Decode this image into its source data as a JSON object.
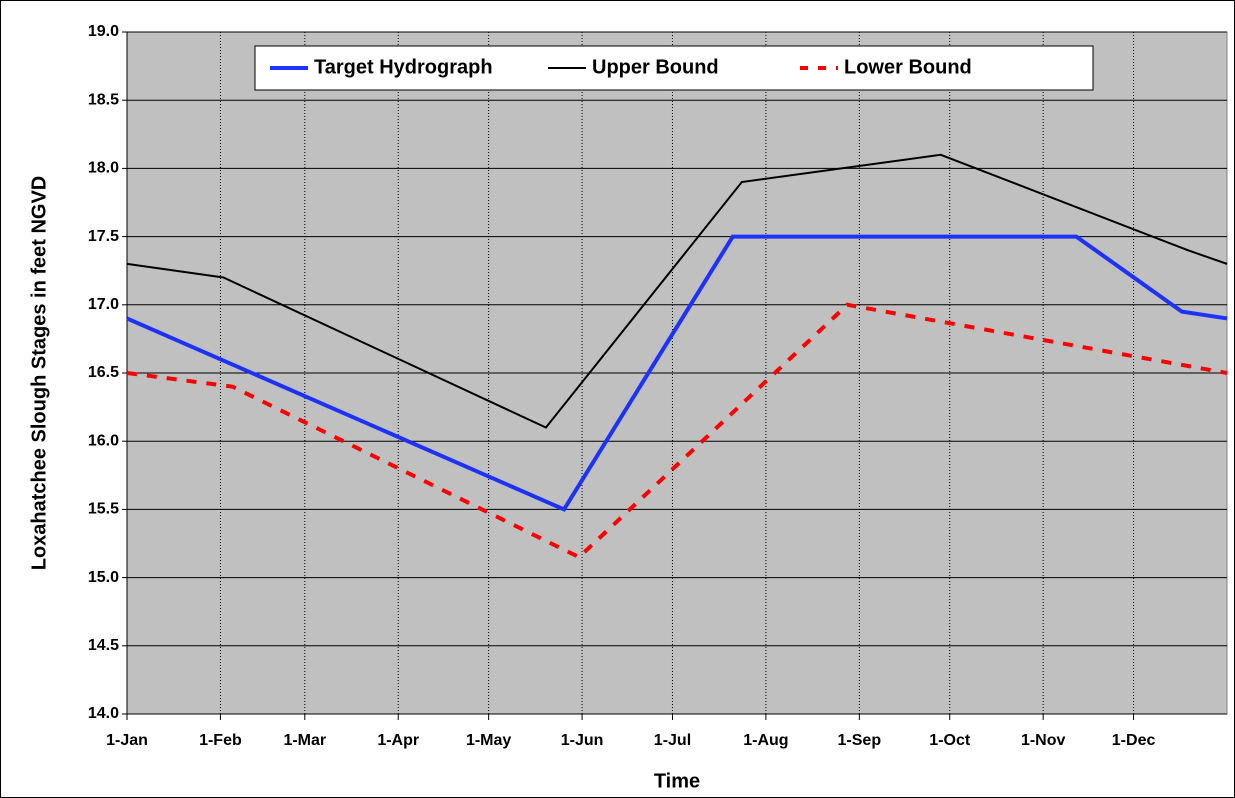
{
  "chart_data": {
    "type": "line",
    "x_label": "Time",
    "y_label": "Loxahatchee Slough Stages in feet NGVD",
    "xlim": [
      0,
      365
    ],
    "xticks": [
      {
        "value": 0,
        "label": "1-Jan"
      },
      {
        "value": 31,
        "label": "1-Feb"
      },
      {
        "value": 59,
        "label": "1-Mar"
      },
      {
        "value": 90,
        "label": "1-Apr"
      },
      {
        "value": 120,
        "label": "1-May"
      },
      {
        "value": 151,
        "label": "1-Jun"
      },
      {
        "value": 181,
        "label": "1-Jul"
      },
      {
        "value": 212,
        "label": "1-Aug"
      },
      {
        "value": 243,
        "label": "1-Sep"
      },
      {
        "value": 273,
        "label": "1-Oct"
      },
      {
        "value": 304,
        "label": "1-Nov"
      },
      {
        "value": 334,
        "label": "1-Dec"
      }
    ],
    "ylim": [
      14,
      19
    ],
    "yticks": [
      {
        "value": 14,
        "label": "14.0"
      },
      14.5,
      {
        "value": 15,
        "label": "15.0"
      },
      15.5,
      {
        "value": 16,
        "label": "16.0"
      },
      16.5,
      {
        "value": 17,
        "label": "17.0"
      },
      17.5,
      {
        "value": 18,
        "label": "18.0"
      },
      18.5,
      {
        "value": 19,
        "label": "19.0"
      }
    ],
    "grid": true,
    "legend": "top",
    "series": [
      {
        "name": "Target Hydrograph",
        "color": "#1e32ff",
        "style": "solid",
        "x": [
          0,
          145,
          201,
          315,
          350,
          365
        ],
        "values": [
          16.9,
          15.5,
          17.5,
          17.5,
          16.95,
          16.9
        ]
      },
      {
        "name": "Upper Bound",
        "color": "#000000",
        "style": "solid",
        "x": [
          0,
          32,
          139,
          204,
          270,
          352,
          365
        ],
        "values": [
          17.3,
          17.2,
          16.1,
          17.9,
          18.1,
          17.4,
          17.3
        ]
      },
      {
        "name": "Lower Bound",
        "color": "#ff0000",
        "style": "dashed",
        "x": [
          0,
          35,
          150,
          239,
          365
        ],
        "values": [
          16.5,
          16.4,
          15.15,
          17.0,
          16.5
        ]
      }
    ]
  }
}
